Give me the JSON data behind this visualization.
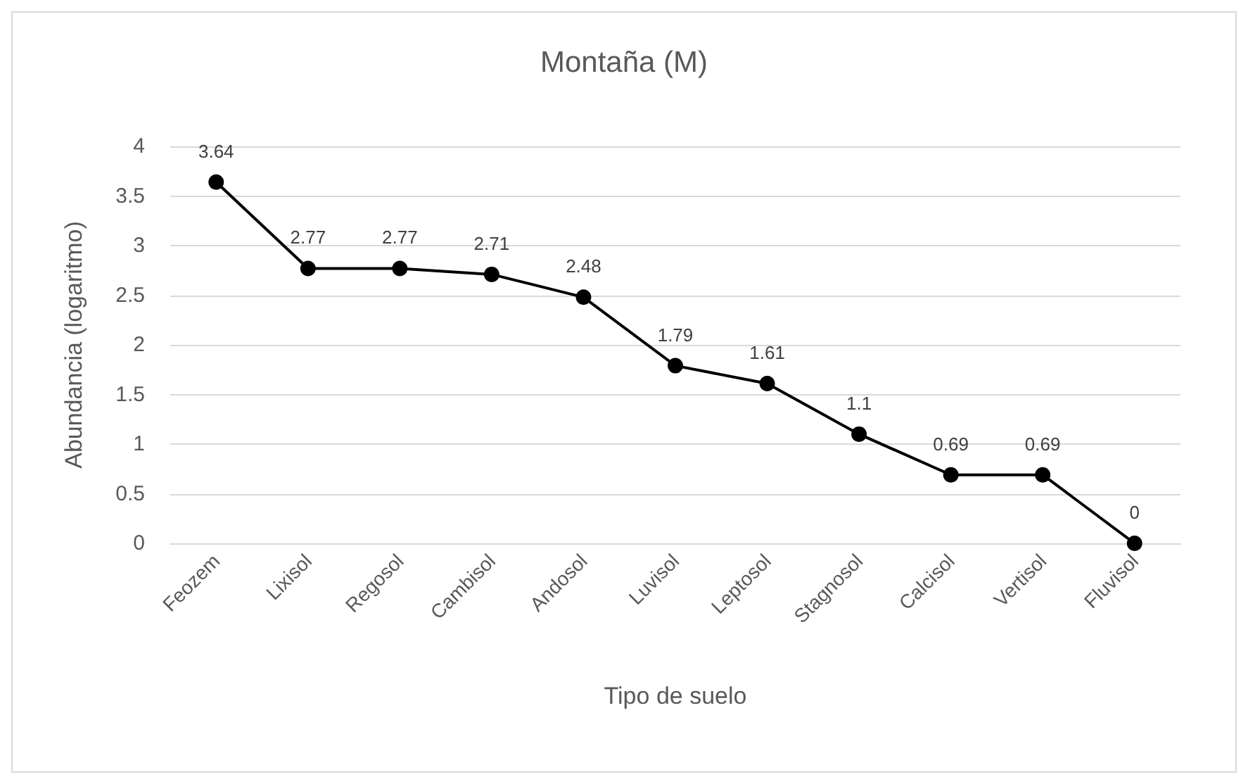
{
  "chart_data": {
    "type": "line",
    "title": "Montaña (M)",
    "xlabel": "Tipo de suelo",
    "ylabel": "Abundancia (logaritmo)",
    "categories": [
      "Feozem",
      "Lixisol",
      "Regosol",
      "Cambisol",
      "Andosol",
      "Luvisol",
      "Leptosol",
      "Stagnosol",
      "Calcisol",
      "Vertisol",
      "Fluvisol"
    ],
    "series": [
      {
        "color": "#000000",
        "values": [
          3.64,
          2.77,
          2.77,
          2.71,
          2.48,
          1.79,
          1.61,
          1.1,
          0.69,
          0.69,
          0
        ]
      }
    ],
    "ylim": [
      0,
      4
    ],
    "yticks": [
      0,
      0.5,
      1,
      1.5,
      2,
      2.5,
      3,
      3.5,
      4
    ],
    "grid": "y",
    "marker": "circle",
    "line_style": "solid",
    "data_labels": true
  }
}
